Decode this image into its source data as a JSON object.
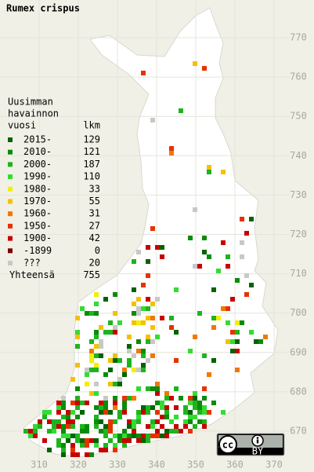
{
  "title": "Rumex crispus",
  "legend": {
    "header": [
      "Uusimman",
      "havainnon"
    ],
    "year_heading": "vuosi",
    "count_heading": "lkm",
    "items": [
      {
        "label": "2015-",
        "count": 129,
        "color": "#006400"
      },
      {
        "label": "2010-",
        "count": 121,
        "color": "#0a8c0a"
      },
      {
        "label": "2000-",
        "count": 187,
        "color": "#1eb41e"
      },
      {
        "label": "1990-",
        "count": 110,
        "color": "#32dc32"
      },
      {
        "label": "1980-",
        "count": 33,
        "color": "#f0f000"
      },
      {
        "label": "1970-",
        "count": 55,
        "color": "#f5c000"
      },
      {
        "label": "1960-",
        "count": 31,
        "color": "#f07800"
      },
      {
        "label": "1950-",
        "count": 27,
        "color": "#e63200"
      },
      {
        "label": "1900-",
        "count": 42,
        "color": "#c80000"
      },
      {
        "label": "-1899",
        "count": 0,
        "color": "#780000"
      },
      {
        "label": "???",
        "count": 20,
        "color": "#c8c8c8"
      }
    ],
    "total_label": "Yhteensä",
    "total": 755
  },
  "grid": {
    "x_labels": [
      310,
      320,
      330,
      340,
      350,
      360,
      370
    ],
    "y_labels": [
      670,
      680,
      690,
      700,
      710,
      720,
      730,
      740,
      750,
      760,
      770
    ]
  },
  "license": {
    "cc": "cc",
    "by": "BY"
  }
}
